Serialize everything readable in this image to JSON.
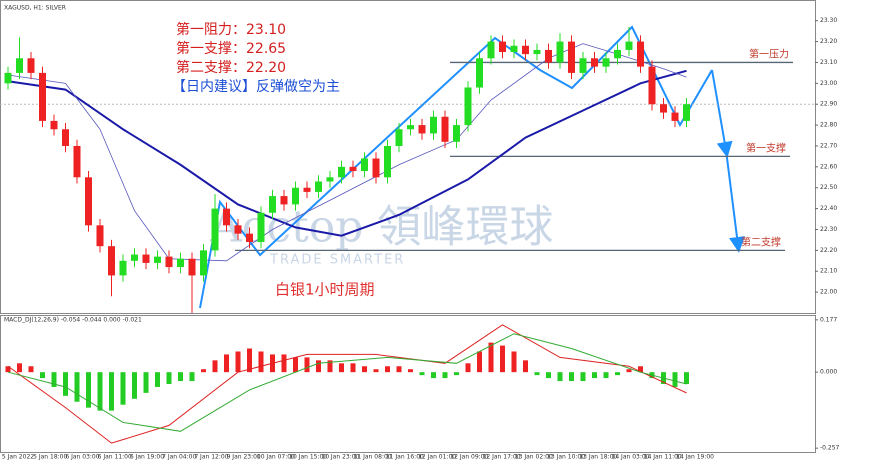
{
  "chart_data": {
    "type": "candlestick",
    "title": "XAGUSD, H1: SILVER",
    "annotations": [
      "第一阻力：23.10",
      "第一支撑：22.65",
      "第二支撑：22.20",
      "【日内建议】反弹做空为主"
    ],
    "period_label": "白银1小时周期",
    "level_names": [
      "第一压力",
      "第一支撑",
      "第二支撑"
    ],
    "levels": [
      23.1,
      22.65,
      22.2
    ],
    "watermark": "Acctop 領峰環球",
    "watermark_sub": "TRADE SMARTER",
    "categories": [
      "5 Jan 2022",
      "5 Jan 18:00",
      "6 Jan 03:00",
      "6 Jan 11:00",
      "6 Jan 19:00",
      "7 Jan 04:00",
      "7 Jan 12:00",
      "9 Jan 23:00",
      "10 Jan 07:00",
      "10 Jan 15:00",
      "10 Jan 23:00",
      "11 Jan 08:00",
      "11 Jan 16:00",
      "12 Jan 01:00",
      "12 Jan 09:00",
      "12 Jan 17:00",
      "13 Jan 02:00",
      "13 Jan 10:00",
      "13 Jan 18:00",
      "14 Jan 03:00",
      "14 Jan 11:00",
      "14 Jan 19:00"
    ],
    "open": [
      23.0,
      23.05,
      23.12,
      23.05,
      22.82,
      22.78,
      22.7,
      22.55,
      22.32,
      22.22,
      22.08,
      22.15,
      22.18,
      22.14,
      22.17,
      22.12,
      22.16,
      22.08,
      22.2,
      22.4,
      22.32,
      22.28,
      22.24,
      22.38,
      22.46,
      22.42,
      22.5,
      22.48,
      22.53,
      22.55,
      22.6,
      22.58,
      22.64,
      22.55,
      22.7,
      22.78,
      22.8,
      22.76,
      22.84,
      22.72,
      22.8,
      22.98,
      23.12,
      23.2,
      23.15,
      23.18,
      23.14,
      23.16,
      23.1,
      23.2,
      23.05,
      23.12,
      23.08,
      23.12,
      23.16,
      23.2,
      23.08,
      22.9,
      22.86,
      22.82
    ],
    "high": [
      23.08,
      23.22,
      23.15,
      23.08,
      22.85,
      22.81,
      22.73,
      22.58,
      22.35,
      22.25,
      22.18,
      22.21,
      22.21,
      22.2,
      22.2,
      22.19,
      22.19,
      22.23,
      22.47,
      22.43,
      22.35,
      22.31,
      22.41,
      22.49,
      22.49,
      22.53,
      22.53,
      22.56,
      22.58,
      22.63,
      22.63,
      22.67,
      22.67,
      22.73,
      22.81,
      22.83,
      22.83,
      22.87,
      22.87,
      22.83,
      23.01,
      23.15,
      23.23,
      23.23,
      23.21,
      23.21,
      23.19,
      23.19,
      23.24,
      23.23,
      23.15,
      23.15,
      23.15,
      23.19,
      23.27,
      23.23,
      23.11,
      22.93,
      22.89,
      22.93
    ],
    "low": [
      22.97,
      23.02,
      23.02,
      22.79,
      22.75,
      22.67,
      22.52,
      22.29,
      22.19,
      21.98,
      22.05,
      22.12,
      22.11,
      22.11,
      22.09,
      22.09,
      21.9,
      22.05,
      22.17,
      22.29,
      22.25,
      22.21,
      22.21,
      22.35,
      22.39,
      22.39,
      22.45,
      22.45,
      22.5,
      22.52,
      22.55,
      22.55,
      22.52,
      22.52,
      22.67,
      22.75,
      22.73,
      22.73,
      22.69,
      22.69,
      22.77,
      22.95,
      23.09,
      23.12,
      23.12,
      23.11,
      23.11,
      23.07,
      23.07,
      23.02,
      23.02,
      23.05,
      23.05,
      23.09,
      23.13,
      23.05,
      22.87,
      22.83,
      22.79,
      22.79
    ],
    "close": [
      23.05,
      23.12,
      23.05,
      22.82,
      22.78,
      22.7,
      22.55,
      22.32,
      22.22,
      22.08,
      22.15,
      22.18,
      22.14,
      22.17,
      22.12,
      22.16,
      22.08,
      22.2,
      22.4,
      22.32,
      22.28,
      22.24,
      22.38,
      22.46,
      22.42,
      22.5,
      22.48,
      22.53,
      22.55,
      22.6,
      22.58,
      22.64,
      22.55,
      22.7,
      22.78,
      22.8,
      22.76,
      22.84,
      22.72,
      22.8,
      22.98,
      23.12,
      23.2,
      23.15,
      23.18,
      23.14,
      23.16,
      23.1,
      23.2,
      23.05,
      23.12,
      23.08,
      23.12,
      23.16,
      23.2,
      23.08,
      22.9,
      22.86,
      22.82,
      22.9
    ],
    "up_color": "#22dd22",
    "down_color": "#ee2222",
    "ma": [
      {
        "color": "#1a1aa8",
        "x": [
          0,
          5,
          10,
          15,
          20,
          25,
          29,
          34,
          40,
          45,
          50,
          55,
          59
        ],
        "values": [
          23.01,
          22.97,
          22.78,
          22.61,
          22.42,
          22.31,
          22.27,
          22.37,
          22.54,
          22.74,
          22.87,
          23.0,
          23.06
        ]
      },
      {
        "color": "#5555bb",
        "x": [
          0,
          5,
          8,
          11,
          14,
          19,
          23,
          28,
          34,
          39,
          42,
          47,
          50,
          53,
          57,
          59
        ],
        "values": [
          23.04,
          23.0,
          22.78,
          22.39,
          22.16,
          22.15,
          22.3,
          22.44,
          22.61,
          22.73,
          22.92,
          23.12,
          23.19,
          23.14,
          23.07,
          23.03
        ]
      }
    ],
    "ylim": [
      21.9,
      23.38
    ],
    "yticks": [
      {
        "value": 22.0,
        "label": "22.00"
      },
      {
        "value": 22.1,
        "label": "22.10"
      },
      {
        "value": 22.2,
        "label": "22.20"
      },
      {
        "value": 22.3,
        "label": "22.30"
      },
      {
        "value": 22.4,
        "label": "22.40"
      },
      {
        "value": 22.5,
        "label": "22.50"
      },
      {
        "value": 22.6,
        "label": "22.60"
      },
      {
        "value": 22.7,
        "label": "22.70"
      },
      {
        "value": 22.8,
        "label": "22.80"
      },
      {
        "value": 22.9,
        "label": "22.90"
      },
      {
        "value": 23.0,
        "label": "23.00"
      },
      {
        "value": 23.1,
        "label": "23.10"
      },
      {
        "value": 23.2,
        "label": "23.20"
      },
      {
        "value": 23.3,
        "label": "23.30"
      }
    ],
    "macd": {
      "label": "MACD_DJ(12,26,9) -0.054 -0.044 0.000 -0.021",
      "hist": [
        0.02,
        0.03,
        0.02,
        -0.02,
        -0.05,
        -0.08,
        -0.1,
        -0.12,
        -0.13,
        -0.13,
        -0.11,
        -0.09,
        -0.07,
        -0.05,
        -0.04,
        -0.03,
        -0.03,
        0.01,
        0.04,
        0.06,
        0.07,
        0.08,
        0.07,
        0.06,
        0.06,
        0.05,
        0.05,
        0.04,
        0.04,
        0.03,
        0.03,
        0.02,
        0.01,
        0.02,
        0.02,
        0.01,
        -0.01,
        -0.02,
        -0.02,
        -0.01,
        0.03,
        0.07,
        0.1,
        0.09,
        0.07,
        0.04,
        -0.01,
        -0.02,
        -0.03,
        -0.03,
        -0.03,
        -0.02,
        -0.02,
        -0.01,
        0.01,
        0.02,
        -0.02,
        -0.04,
        -0.05,
        -0.04
      ],
      "pos_color": "#ee2222",
      "neg_color": "#22cc22",
      "lines": [
        {
          "color": "#dd2222",
          "x": [
            0,
            5,
            9,
            14,
            20,
            26,
            32,
            38,
            43,
            48,
            54,
            59
          ],
          "values": [
            0.02,
            -0.12,
            -0.24,
            -0.18,
            0.0,
            0.06,
            0.06,
            0.03,
            0.16,
            0.05,
            0.02,
            -0.07
          ]
        },
        {
          "color": "#33aa33",
          "x": [
            0,
            5,
            10,
            15,
            21,
            27,
            33,
            39,
            44,
            49,
            55,
            59
          ],
          "values": [
            0.0,
            -0.05,
            -0.17,
            -0.2,
            -0.06,
            0.03,
            0.05,
            0.03,
            0.13,
            0.08,
            0.0,
            -0.04
          ]
        }
      ],
      "ylim": [
        -0.27,
        0.19
      ],
      "yticks": [
        0.177,
        {
          "value": 0,
          "label": "0.000"
        },
        -0.257
      ]
    }
  }
}
